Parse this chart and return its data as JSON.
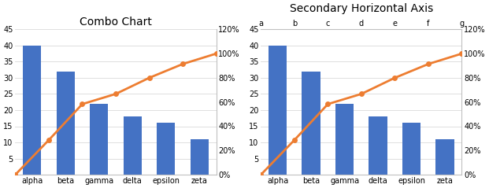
{
  "categories": [
    "alpha",
    "beta",
    "gamma",
    "delta",
    "epsilon",
    "zeta"
  ],
  "bar_values": [
    40,
    32,
    22,
    18,
    16,
    11
  ],
  "line_pct": [
    0.0,
    0.286,
    0.583,
    0.667,
    0.8,
    0.914,
    1.0
  ],
  "bar_color": "#4472C4",
  "line_color": "#ED7D31",
  "left_ylim": [
    0,
    45
  ],
  "right_ylim": [
    0,
    1.2
  ],
  "left_yticks": [
    0,
    5,
    10,
    15,
    20,
    25,
    30,
    35,
    40,
    45
  ],
  "right_yticks": [
    0.0,
    0.2,
    0.4,
    0.6,
    0.8,
    1.0,
    1.2
  ],
  "title1": "Combo Chart",
  "title2": "Secondary Horizontal Axis",
  "top_labels": [
    "a",
    "b",
    "c",
    "d",
    "e",
    "f",
    "g"
  ],
  "background_color": "#ffffff",
  "grid_color": "#d9d9d9",
  "bar_width": 0.55,
  "line_marker_size": 4,
  "line_width": 2.0,
  "tick_fontsize": 7,
  "title_fontsize": 10
}
